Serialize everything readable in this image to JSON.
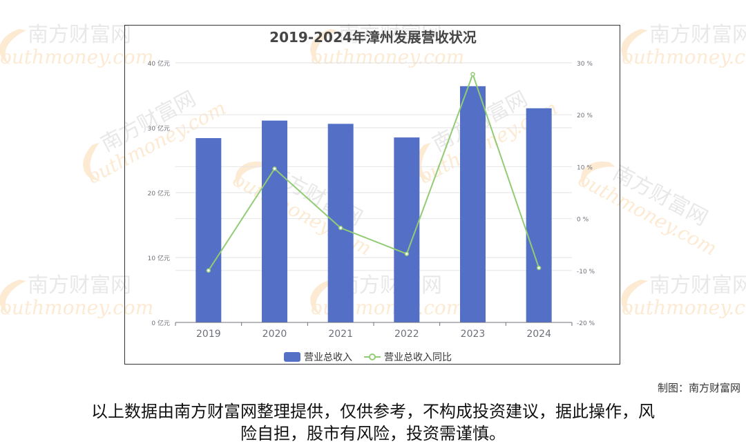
{
  "chart_data": {
    "type": "bar",
    "title": "2019-2024年漳州发展营收状况",
    "categories": [
      "2019",
      "2020",
      "2021",
      "2022",
      "2023",
      "2024"
    ],
    "series": [
      {
        "name": "营业总收入",
        "type": "bar",
        "axis": "left",
        "values": [
          28.4,
          31.1,
          30.6,
          28.5,
          36.4,
          33.0
        ],
        "color": "#5470c6"
      },
      {
        "name": "营业总收入同比",
        "type": "line",
        "axis": "right",
        "values": [
          -10.0,
          9.6,
          -1.8,
          -6.8,
          27.8,
          -9.5
        ],
        "color": "#91cc75"
      }
    ],
    "y_left": {
      "range": [
        0,
        40
      ],
      "ticks": [
        0,
        10,
        20,
        30,
        40
      ],
      "tick_labels": [
        "0 亿元",
        "10 亿元",
        "20 亿元",
        "30 亿元",
        "40 亿元"
      ]
    },
    "y_right": {
      "range": [
        -20,
        30
      ],
      "ticks": [
        -20,
        -10,
        0,
        10,
        20,
        30
      ],
      "tick_labels": [
        "-20 %",
        "-10 %",
        "0 %",
        "10 %",
        "20 %",
        "30 %"
      ]
    },
    "legend_position": "bottom-center",
    "grid": true
  },
  "watermark": {
    "brand": "南方财富网",
    "url": "outhmoney.com"
  },
  "credit": "制图：南方财富网",
  "disclaimer": [
    "以上数据由南方财富网整理提供，仅供参考，不构成投资建议，据此操作，风",
    "险自担，股市有风险，投资需谨慎。"
  ]
}
